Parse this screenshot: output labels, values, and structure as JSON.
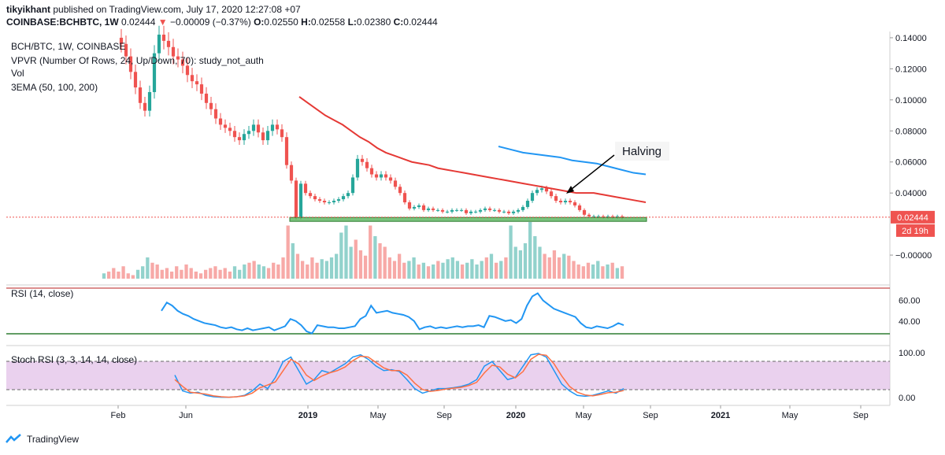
{
  "header": {
    "author": "tikyikhant",
    "published": "published on TradingView.com, July 17, 2020 12:27:08 +07",
    "symbol": "COINBASE:BCHBTC, 1W",
    "last": "0.02444",
    "arrow": "▼",
    "change": "−0.00009 (−0.37%)",
    "open_label": "O:",
    "open": "0.02550",
    "high_label": "H:",
    "high": "0.02558",
    "low_label": "L:",
    "low": "0.02380",
    "close_label": "C:",
    "close": "0.02444"
  },
  "legend": [
    "BCH/BTC, 1W, COINBASE",
    "VPVR (Number Of Rows, 24, Up/Down, 70): study_not_auth",
    "Vol",
    "3EMA (50, 100, 200)"
  ],
  "annotation": "Halving",
  "price_label": "0.02444",
  "countdown_label": "2d 19h",
  "rsi_label": "RSI (14, close)",
  "stoch_label": "Stoch RSI (3, 3, 14, 14, close)",
  "footer_brand": "TradingView",
  "colors": {
    "up": "#26a69a",
    "down": "#ef5350",
    "ema50": "#e53935",
    "ema100": "#2196f3",
    "rsi": "#2196f3",
    "stoch_k": "#2196f3",
    "stoch_d": "#ff7043",
    "support": "#4caf50",
    "stoch_band": "#e1bee7"
  },
  "chart_data": [
    {
      "type": "candlestick",
      "title": "BCH/BTC, 1W, COINBASE",
      "x_ticks": [
        "Feb",
        "Jun",
        "2019",
        "May",
        "Sep",
        "2020",
        "May",
        "Sep",
        "2021",
        "May",
        "Sep"
      ],
      "y_ticks": [
        "0.14000",
        "0.12000",
        "0.10000",
        "0.08000",
        "0.06000",
        "0.04000",
        "0.02444",
        "−0.00000"
      ],
      "ylim": [
        -0.003,
        0.142
      ],
      "close_series": [
        0.14,
        0.136,
        0.128,
        0.118,
        0.108,
        0.098,
        0.093,
        0.105,
        0.13,
        0.142,
        0.138,
        0.134,
        0.128,
        0.126,
        0.122,
        0.116,
        0.112,
        0.11,
        0.104,
        0.098,
        0.094,
        0.088,
        0.084,
        0.082,
        0.08,
        0.076,
        0.074,
        0.078,
        0.08,
        0.084,
        0.079,
        0.074,
        0.08,
        0.084,
        0.081,
        0.076,
        0.058,
        0.048,
        0.024,
        0.046,
        0.04,
        0.038,
        0.036,
        0.035,
        0.034,
        0.034,
        0.035,
        0.036,
        0.038,
        0.04,
        0.05,
        0.062,
        0.06,
        0.056,
        0.052,
        0.05,
        0.052,
        0.05,
        0.048,
        0.044,
        0.04,
        0.034,
        0.03,
        0.031,
        0.032,
        0.029,
        0.03,
        0.029,
        0.029,
        0.028,
        0.028,
        0.029,
        0.029,
        0.029,
        0.027,
        0.028,
        0.028,
        0.029,
        0.03,
        0.029,
        0.029,
        0.028,
        0.028,
        0.027,
        0.028,
        0.029,
        0.031,
        0.035,
        0.04,
        0.042,
        0.043,
        0.041,
        0.038,
        0.035,
        0.034,
        0.035,
        0.034,
        0.032,
        0.029,
        0.026,
        0.025,
        0.025,
        0.025,
        0.0245,
        0.025,
        0.0245,
        0.025,
        0.024
      ],
      "ema50": [
        0.102,
        0.098,
        0.094,
        0.09,
        0.087,
        0.084,
        0.08,
        0.076,
        0.073,
        0.069,
        0.066,
        0.064,
        0.062,
        0.06,
        0.059,
        0.058,
        0.056,
        0.055,
        0.054,
        0.053,
        0.052,
        0.051,
        0.05,
        0.049,
        0.048,
        0.047,
        0.046,
        0.045,
        0.044,
        0.043,
        0.042,
        0.041,
        0.04,
        0.04,
        0.04,
        0.039,
        0.038,
        0.037,
        0.036,
        0.035,
        0.034
      ],
      "ema100": [
        0.07,
        0.068,
        0.066,
        0.065,
        0.064,
        0.063,
        0.061,
        0.06,
        0.059,
        0.057,
        0.055,
        0.053,
        0.052
      ],
      "support_level": 0.023,
      "volume_series": [
        3,
        4,
        6,
        4,
        7,
        3,
        2,
        5,
        7,
        12,
        9,
        8,
        5,
        6,
        4,
        7,
        5,
        8,
        6,
        4,
        3,
        5,
        6,
        7,
        5,
        6,
        4,
        7,
        5,
        8,
        9,
        10,
        8,
        7,
        6,
        9,
        8,
        12,
        30,
        20,
        14,
        10,
        8,
        12,
        9,
        11,
        10,
        12,
        14,
        26,
        30,
        18,
        22,
        16,
        13,
        30,
        24,
        20,
        18,
        12,
        10,
        14,
        9,
        10,
        12,
        8,
        9,
        7,
        8,
        10,
        9,
        11,
        12,
        10,
        8,
        9,
        11,
        8,
        10,
        12,
        14,
        9,
        10,
        12,
        30,
        18,
        16,
        20,
        32,
        24,
        18,
        14,
        12,
        16,
        12,
        14,
        13,
        10,
        8,
        7,
        9,
        8,
        10,
        7,
        8,
        9,
        6,
        7
      ]
    },
    {
      "type": "line",
      "title": "RSI (14, close)",
      "y_ticks": [
        "60.00",
        "40.00"
      ],
      "ylim": [
        20,
        72
      ],
      "series": [
        {
          "values": [
            50,
            58,
            55,
            50,
            47,
            45,
            42,
            40,
            38,
            37,
            36,
            34,
            33,
            34,
            32,
            31,
            33,
            31,
            32,
            33,
            34,
            31,
            33,
            35,
            42,
            40,
            36,
            30,
            28,
            36,
            35,
            34,
            34,
            33,
            33,
            34,
            35,
            42,
            45,
            55,
            48,
            49,
            50,
            48,
            47,
            46,
            44,
            40,
            32,
            34,
            35,
            33,
            34,
            33,
            34,
            35,
            34,
            35,
            35,
            36,
            34,
            45,
            44,
            42,
            40,
            41,
            38,
            42,
            55,
            64,
            67,
            60,
            56,
            52,
            50,
            48,
            46,
            44,
            38,
            34,
            33,
            35,
            34,
            33,
            35,
            38,
            36
          ]
        }
      ]
    },
    {
      "type": "line",
      "title": "Stoch RSI (3, 3, 14, 14, close)",
      "y_ticks": [
        "100.00",
        "0.00"
      ],
      "ylim": [
        -5,
        105
      ],
      "series": [
        {
          "values": [
            50,
            15,
            10,
            12,
            5,
            2,
            1,
            1,
            2,
            5,
            15,
            30,
            20,
            45,
            80,
            90,
            60,
            30,
            40,
            60,
            55,
            65,
            75,
            90,
            95,
            85,
            70,
            60,
            62,
            58,
            40,
            20,
            10,
            15,
            20,
            20,
            22,
            25,
            30,
            40,
            70,
            80,
            60,
            40,
            45,
            70,
            95,
            98,
            90,
            60,
            30,
            15,
            5,
            3,
            5,
            10,
            15,
            10,
            20
          ]
        },
        {
          "values": [
            40,
            25,
            12,
            10,
            8,
            4,
            2,
            1,
            2,
            4,
            10,
            22,
            28,
            35,
            60,
            85,
            75,
            50,
            38,
            48,
            55,
            60,
            68,
            82,
            92,
            90,
            78,
            66,
            60,
            60,
            50,
            32,
            18,
            14,
            16,
            19,
            21,
            23,
            27,
            34,
            55,
            72,
            68,
            52,
            44,
            58,
            85,
            96,
            94,
            75,
            48,
            25,
            12,
            6,
            4,
            7,
            11,
            12,
            16
          ]
        }
      ]
    }
  ]
}
